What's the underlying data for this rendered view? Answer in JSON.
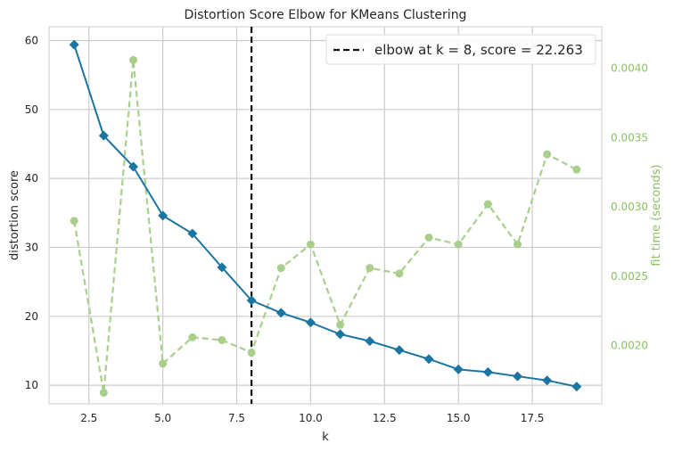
{
  "colors": {
    "score": "#1a75a0",
    "time": "#a9cf8d",
    "time_label": "#8bc163",
    "elbow": "#111111",
    "grid": "#cccccc",
    "frame": "#cccccc",
    "text": "#262626"
  },
  "chart_data": {
    "type": "line",
    "title": "Distortion Score Elbow for KMeans Clustering",
    "xlabel": "k",
    "ylabel": "distortion score",
    "y2label": "fit time (seconds)",
    "xlim": [
      1.15,
      19.85
    ],
    "ylim": [
      7.3,
      62.0
    ],
    "y2lim": [
      0.00158,
      0.0043
    ],
    "x_ticks": [
      2.5,
      5.0,
      7.5,
      10.0,
      12.5,
      15.0,
      17.5
    ],
    "x_tick_labels": [
      "2.5",
      "5.0",
      "7.5",
      "10.0",
      "12.5",
      "15.0",
      "17.5"
    ],
    "y_ticks": [
      10,
      20,
      30,
      40,
      50,
      60
    ],
    "y_tick_labels": [
      "10",
      "20",
      "30",
      "40",
      "50",
      "60"
    ],
    "y2_ticks": [
      0.002,
      0.0025,
      0.003,
      0.0035,
      0.004
    ],
    "y2_tick_labels": [
      "0.0020",
      "0.0025",
      "0.0030",
      "0.0035",
      "0.0040"
    ],
    "grid": true,
    "series": [
      {
        "name": "distortion score",
        "axis": "left",
        "style": "solid",
        "marker": "diamond",
        "x": [
          2,
          3,
          4,
          5,
          6,
          7,
          8,
          9,
          10,
          11,
          12,
          13,
          14,
          15,
          16,
          17,
          18,
          19
        ],
        "values": [
          59.4,
          46.2,
          41.7,
          34.6,
          32.0,
          27.1,
          22.3,
          20.5,
          19.1,
          17.4,
          16.4,
          15.1,
          13.8,
          12.3,
          11.9,
          11.3,
          10.7,
          9.8
        ]
      },
      {
        "name": "fit time (seconds)",
        "axis": "right",
        "style": "dashed",
        "marker": "circle",
        "x": [
          2,
          3,
          4,
          5,
          6,
          7,
          8,
          9,
          10,
          11,
          12,
          13,
          14,
          15,
          16,
          17,
          18,
          19
        ],
        "values": [
          0.0029,
          0.00166,
          0.00406,
          0.00187,
          0.00206,
          0.00204,
          0.00195,
          0.00256,
          0.00273,
          0.00215,
          0.00256,
          0.00252,
          0.00278,
          0.00273,
          0.00302,
          0.00273,
          0.00338,
          0.00327
        ]
      }
    ],
    "elbow": {
      "k": 8,
      "score": 22.263,
      "style": "dashed"
    },
    "legend": {
      "placement": "top-right",
      "label": "elbow at k = 8, score = 22.263"
    }
  }
}
